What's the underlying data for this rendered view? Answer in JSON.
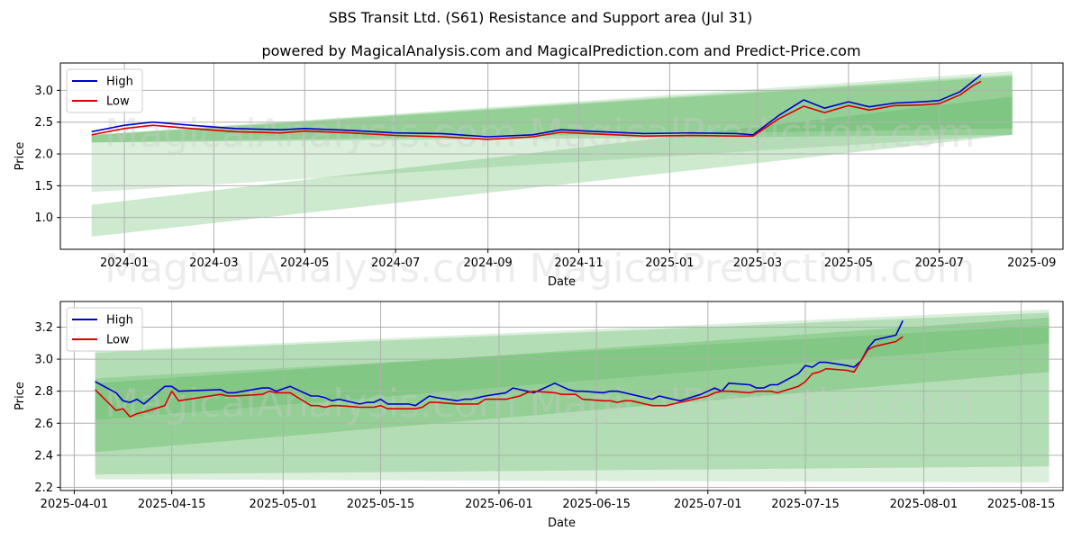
{
  "title": "SBS Transit Ltd. (S61) Resistance and Support area (Jul 31)",
  "subtitle": "powered by MagicalAnalysis.com and MagicalPrediction.com and Predict-Price.com",
  "watermarks": [
    "MagicalAnalysis.com",
    "MagicalPrediction.com"
  ],
  "colors": {
    "high": "#0000cc",
    "low": "#dd0000",
    "band": "#4caf50",
    "grid": "#b0b0b0"
  },
  "chart_data": [
    {
      "type": "line",
      "xlabel": "Date",
      "ylabel": "Price",
      "x_tick_labels": [
        "2024-01",
        "2024-03",
        "2024-05",
        "2024-07",
        "2024-09",
        "2024-11",
        "2025-01",
        "2025-03",
        "2025-05",
        "2025-07",
        "2025-09"
      ],
      "x_ticks": [
        "2024-01-01",
        "2024-03-01",
        "2024-05-01",
        "2024-07-01",
        "2024-09-01",
        "2024-11-01",
        "2025-01-01",
        "2025-03-01",
        "2025-05-01",
        "2025-07-01",
        "2025-09-01"
      ],
      "xlim": [
        "2023-11-19",
        "2025-09-22"
      ],
      "y_ticks": [
        1.0,
        1.5,
        2.0,
        2.5,
        3.0
      ],
      "y_tick_labels": [
        "1.0",
        "1.5",
        "2.0",
        "2.5",
        "3.0"
      ],
      "ylim": [
        0.5,
        3.43
      ],
      "grid": true,
      "legend_placement": "top-left",
      "bands": [
        {
          "x": [
            "2023-12-10",
            "2025-08-19"
          ],
          "upper": [
            2.3,
            3.3
          ],
          "lower": [
            1.4,
            2.3
          ],
          "opacity": 0.2
        },
        {
          "x": [
            "2023-12-10",
            "2025-08-19"
          ],
          "upper": [
            2.3,
            3.25
          ],
          "lower": [
            2.18,
            2.3
          ],
          "opacity": 0.28
        },
        {
          "x": [
            "2023-12-10",
            "2025-08-19"
          ],
          "upper": [
            1.2,
            2.9
          ],
          "lower": [
            0.7,
            2.3
          ],
          "opacity": 0.28
        },
        {
          "x": [
            "2023-12-10",
            "2025-08-19"
          ],
          "upper": [
            2.29,
            3.22
          ],
          "lower": [
            2.18,
            2.4
          ],
          "opacity": 0.3
        }
      ],
      "series": [
        {
          "name": "High",
          "x": [
            "2023-12-10",
            "2024-01-01",
            "2024-01-20",
            "2024-02-15",
            "2024-03-15",
            "2024-04-15",
            "2024-05-01",
            "2024-06-01",
            "2024-07-01",
            "2024-08-01",
            "2024-09-01",
            "2024-10-01",
            "2024-10-20",
            "2024-11-15",
            "2024-12-15",
            "2025-01-15",
            "2025-02-15",
            "2025-02-26",
            "2025-03-15",
            "2025-04-01",
            "2025-04-15",
            "2025-05-01",
            "2025-05-15",
            "2025-06-01",
            "2025-06-20",
            "2025-07-01",
            "2025-07-15",
            "2025-07-24",
            "2025-07-29"
          ],
          "values": [
            2.35,
            2.45,
            2.5,
            2.45,
            2.4,
            2.38,
            2.4,
            2.37,
            2.33,
            2.32,
            2.27,
            2.3,
            2.38,
            2.35,
            2.32,
            2.33,
            2.32,
            2.3,
            2.6,
            2.85,
            2.72,
            2.82,
            2.74,
            2.8,
            2.82,
            2.84,
            2.98,
            3.15,
            3.24
          ]
        },
        {
          "name": "Low",
          "x": [
            "2023-12-10",
            "2024-01-01",
            "2024-01-20",
            "2024-02-15",
            "2024-03-15",
            "2024-04-15",
            "2024-05-01",
            "2024-06-01",
            "2024-07-01",
            "2024-08-01",
            "2024-09-01",
            "2024-10-01",
            "2024-10-20",
            "2024-11-15",
            "2024-12-15",
            "2025-01-15",
            "2025-02-15",
            "2025-02-26",
            "2025-03-15",
            "2025-04-01",
            "2025-04-15",
            "2025-05-01",
            "2025-05-15",
            "2025-06-01",
            "2025-06-20",
            "2025-07-01",
            "2025-07-15",
            "2025-07-24",
            "2025-07-29"
          ],
          "values": [
            2.3,
            2.4,
            2.45,
            2.4,
            2.35,
            2.33,
            2.36,
            2.33,
            2.29,
            2.27,
            2.23,
            2.27,
            2.34,
            2.31,
            2.28,
            2.29,
            2.28,
            2.28,
            2.55,
            2.75,
            2.65,
            2.76,
            2.69,
            2.76,
            2.77,
            2.79,
            2.93,
            3.08,
            3.14
          ]
        }
      ]
    },
    {
      "type": "line",
      "xlabel": "Date",
      "ylabel": "Price",
      "x_tick_labels": [
        "2025-04-01",
        "2025-04-15",
        "2025-05-01",
        "2025-05-15",
        "2025-06-01",
        "2025-06-15",
        "2025-07-01",
        "2025-07-15",
        "2025-08-01",
        "2025-08-15"
      ],
      "x_ticks": [
        "2025-04-01",
        "2025-04-15",
        "2025-05-01",
        "2025-05-15",
        "2025-06-01",
        "2025-06-15",
        "2025-07-01",
        "2025-07-15",
        "2025-08-01",
        "2025-08-15"
      ],
      "xlim": [
        "2025-03-30",
        "2025-08-21"
      ],
      "y_ticks": [
        2.2,
        2.4,
        2.6,
        2.8,
        3.0,
        3.2
      ],
      "y_tick_labels": [
        "2.2",
        "2.4",
        "2.6",
        "2.8",
        "3.0",
        "3.2"
      ],
      "ylim": [
        2.18,
        3.36
      ],
      "grid": true,
      "legend_placement": "top-left",
      "bands": [
        {
          "x": [
            "2025-04-04",
            "2025-08-19"
          ],
          "upper": [
            3.05,
            3.31
          ],
          "lower": [
            2.25,
            2.23
          ],
          "opacity": 0.2
        },
        {
          "x": [
            "2025-04-04",
            "2025-08-19"
          ],
          "upper": [
            3.04,
            3.29
          ],
          "lower": [
            2.28,
            2.33
          ],
          "opacity": 0.28
        },
        {
          "x": [
            "2025-04-04",
            "2025-08-19"
          ],
          "upper": [
            2.85,
            3.26
          ],
          "lower": [
            2.42,
            2.92
          ],
          "opacity": 0.3
        },
        {
          "x": [
            "2025-04-04",
            "2025-08-19"
          ],
          "upper": [
            2.88,
            3.21
          ],
          "lower": [
            2.62,
            3.1
          ],
          "opacity": 0.25
        }
      ],
      "series": [
        {
          "name": "High",
          "x": [
            "2025-04-04",
            "2025-04-07",
            "2025-04-08",
            "2025-04-09",
            "2025-04-10",
            "2025-04-11",
            "2025-04-14",
            "2025-04-15",
            "2025-04-16",
            "2025-04-22",
            "2025-04-23",
            "2025-04-24",
            "2025-04-28",
            "2025-04-29",
            "2025-04-30",
            "2025-05-02",
            "2025-05-05",
            "2025-05-06",
            "2025-05-07",
            "2025-05-08",
            "2025-05-09",
            "2025-05-12",
            "2025-05-13",
            "2025-05-14",
            "2025-05-15",
            "2025-05-16",
            "2025-05-19",
            "2025-05-20",
            "2025-05-21",
            "2025-05-22",
            "2025-05-23",
            "2025-05-26",
            "2025-05-27",
            "2025-05-28",
            "2025-05-29",
            "2025-05-30",
            "2025-06-02",
            "2025-06-03",
            "2025-06-04",
            "2025-06-05",
            "2025-06-06",
            "2025-06-09",
            "2025-06-10",
            "2025-06-11",
            "2025-06-12",
            "2025-06-13",
            "2025-06-16",
            "2025-06-17",
            "2025-06-18",
            "2025-06-19",
            "2025-06-20",
            "2025-06-23",
            "2025-06-24",
            "2025-06-25",
            "2025-06-26",
            "2025-06-27",
            "2025-06-30",
            "2025-07-01",
            "2025-07-02",
            "2025-07-03",
            "2025-07-04",
            "2025-07-07",
            "2025-07-08",
            "2025-07-09",
            "2025-07-10",
            "2025-07-11",
            "2025-07-14",
            "2025-07-15",
            "2025-07-16",
            "2025-07-17",
            "2025-07-18",
            "2025-07-21",
            "2025-07-22",
            "2025-07-23",
            "2025-07-24",
            "2025-07-25",
            "2025-07-28",
            "2025-07-29"
          ],
          "values": [
            2.86,
            2.79,
            2.74,
            2.73,
            2.75,
            2.72,
            2.83,
            2.83,
            2.8,
            2.81,
            2.79,
            2.79,
            2.82,
            2.82,
            2.8,
            2.83,
            2.77,
            2.77,
            2.76,
            2.74,
            2.75,
            2.72,
            2.73,
            2.73,
            2.75,
            2.72,
            2.72,
            2.71,
            2.74,
            2.77,
            2.76,
            2.74,
            2.75,
            2.75,
            2.76,
            2.77,
            2.79,
            2.82,
            2.81,
            2.8,
            2.79,
            2.85,
            2.83,
            2.81,
            2.8,
            2.8,
            2.79,
            2.8,
            2.8,
            2.79,
            2.78,
            2.75,
            2.77,
            2.76,
            2.75,
            2.74,
            2.78,
            2.8,
            2.82,
            2.8,
            2.85,
            2.84,
            2.82,
            2.82,
            2.84,
            2.84,
            2.91,
            2.96,
            2.95,
            2.98,
            2.98,
            2.96,
            2.95,
            2.99,
            3.07,
            3.12,
            3.15,
            3.24
          ]
        },
        {
          "name": "Low",
          "x": [
            "2025-04-04",
            "2025-04-07",
            "2025-04-08",
            "2025-04-09",
            "2025-04-10",
            "2025-04-11",
            "2025-04-14",
            "2025-04-15",
            "2025-04-16",
            "2025-04-22",
            "2025-04-23",
            "2025-04-24",
            "2025-04-28",
            "2025-04-29",
            "2025-04-30",
            "2025-05-02",
            "2025-05-05",
            "2025-05-06",
            "2025-05-07",
            "2025-05-08",
            "2025-05-09",
            "2025-05-12",
            "2025-05-13",
            "2025-05-14",
            "2025-05-15",
            "2025-05-16",
            "2025-05-19",
            "2025-05-20",
            "2025-05-21",
            "2025-05-22",
            "2025-05-23",
            "2025-05-26",
            "2025-05-27",
            "2025-05-28",
            "2025-05-29",
            "2025-05-30",
            "2025-06-02",
            "2025-06-03",
            "2025-06-04",
            "2025-06-05",
            "2025-06-06",
            "2025-06-09",
            "2025-06-10",
            "2025-06-11",
            "2025-06-12",
            "2025-06-13",
            "2025-06-16",
            "2025-06-17",
            "2025-06-18",
            "2025-06-19",
            "2025-06-20",
            "2025-06-23",
            "2025-06-24",
            "2025-06-25",
            "2025-06-26",
            "2025-06-27",
            "2025-06-30",
            "2025-07-01",
            "2025-07-02",
            "2025-07-03",
            "2025-07-04",
            "2025-07-07",
            "2025-07-08",
            "2025-07-09",
            "2025-07-10",
            "2025-07-11",
            "2025-07-14",
            "2025-07-15",
            "2025-07-16",
            "2025-07-17",
            "2025-07-18",
            "2025-07-21",
            "2025-07-22",
            "2025-07-23",
            "2025-07-24",
            "2025-07-25",
            "2025-07-28",
            "2025-07-29"
          ],
          "values": [
            2.81,
            2.68,
            2.69,
            2.64,
            2.66,
            2.67,
            2.71,
            2.8,
            2.74,
            2.78,
            2.77,
            2.77,
            2.78,
            2.8,
            2.79,
            2.79,
            2.71,
            2.71,
            2.7,
            2.71,
            2.71,
            2.7,
            2.7,
            2.7,
            2.71,
            2.69,
            2.69,
            2.69,
            2.7,
            2.73,
            2.73,
            2.72,
            2.72,
            2.72,
            2.72,
            2.75,
            2.75,
            2.76,
            2.77,
            2.79,
            2.8,
            2.79,
            2.78,
            2.78,
            2.78,
            2.75,
            2.74,
            2.74,
            2.73,
            2.74,
            2.74,
            2.71,
            2.71,
            2.71,
            2.72,
            2.73,
            2.76,
            2.77,
            2.79,
            2.8,
            2.8,
            2.79,
            2.8,
            2.8,
            2.8,
            2.79,
            2.83,
            2.86,
            2.91,
            2.92,
            2.94,
            2.93,
            2.92,
            2.99,
            3.06,
            3.08,
            3.11,
            3.14
          ]
        }
      ]
    }
  ]
}
